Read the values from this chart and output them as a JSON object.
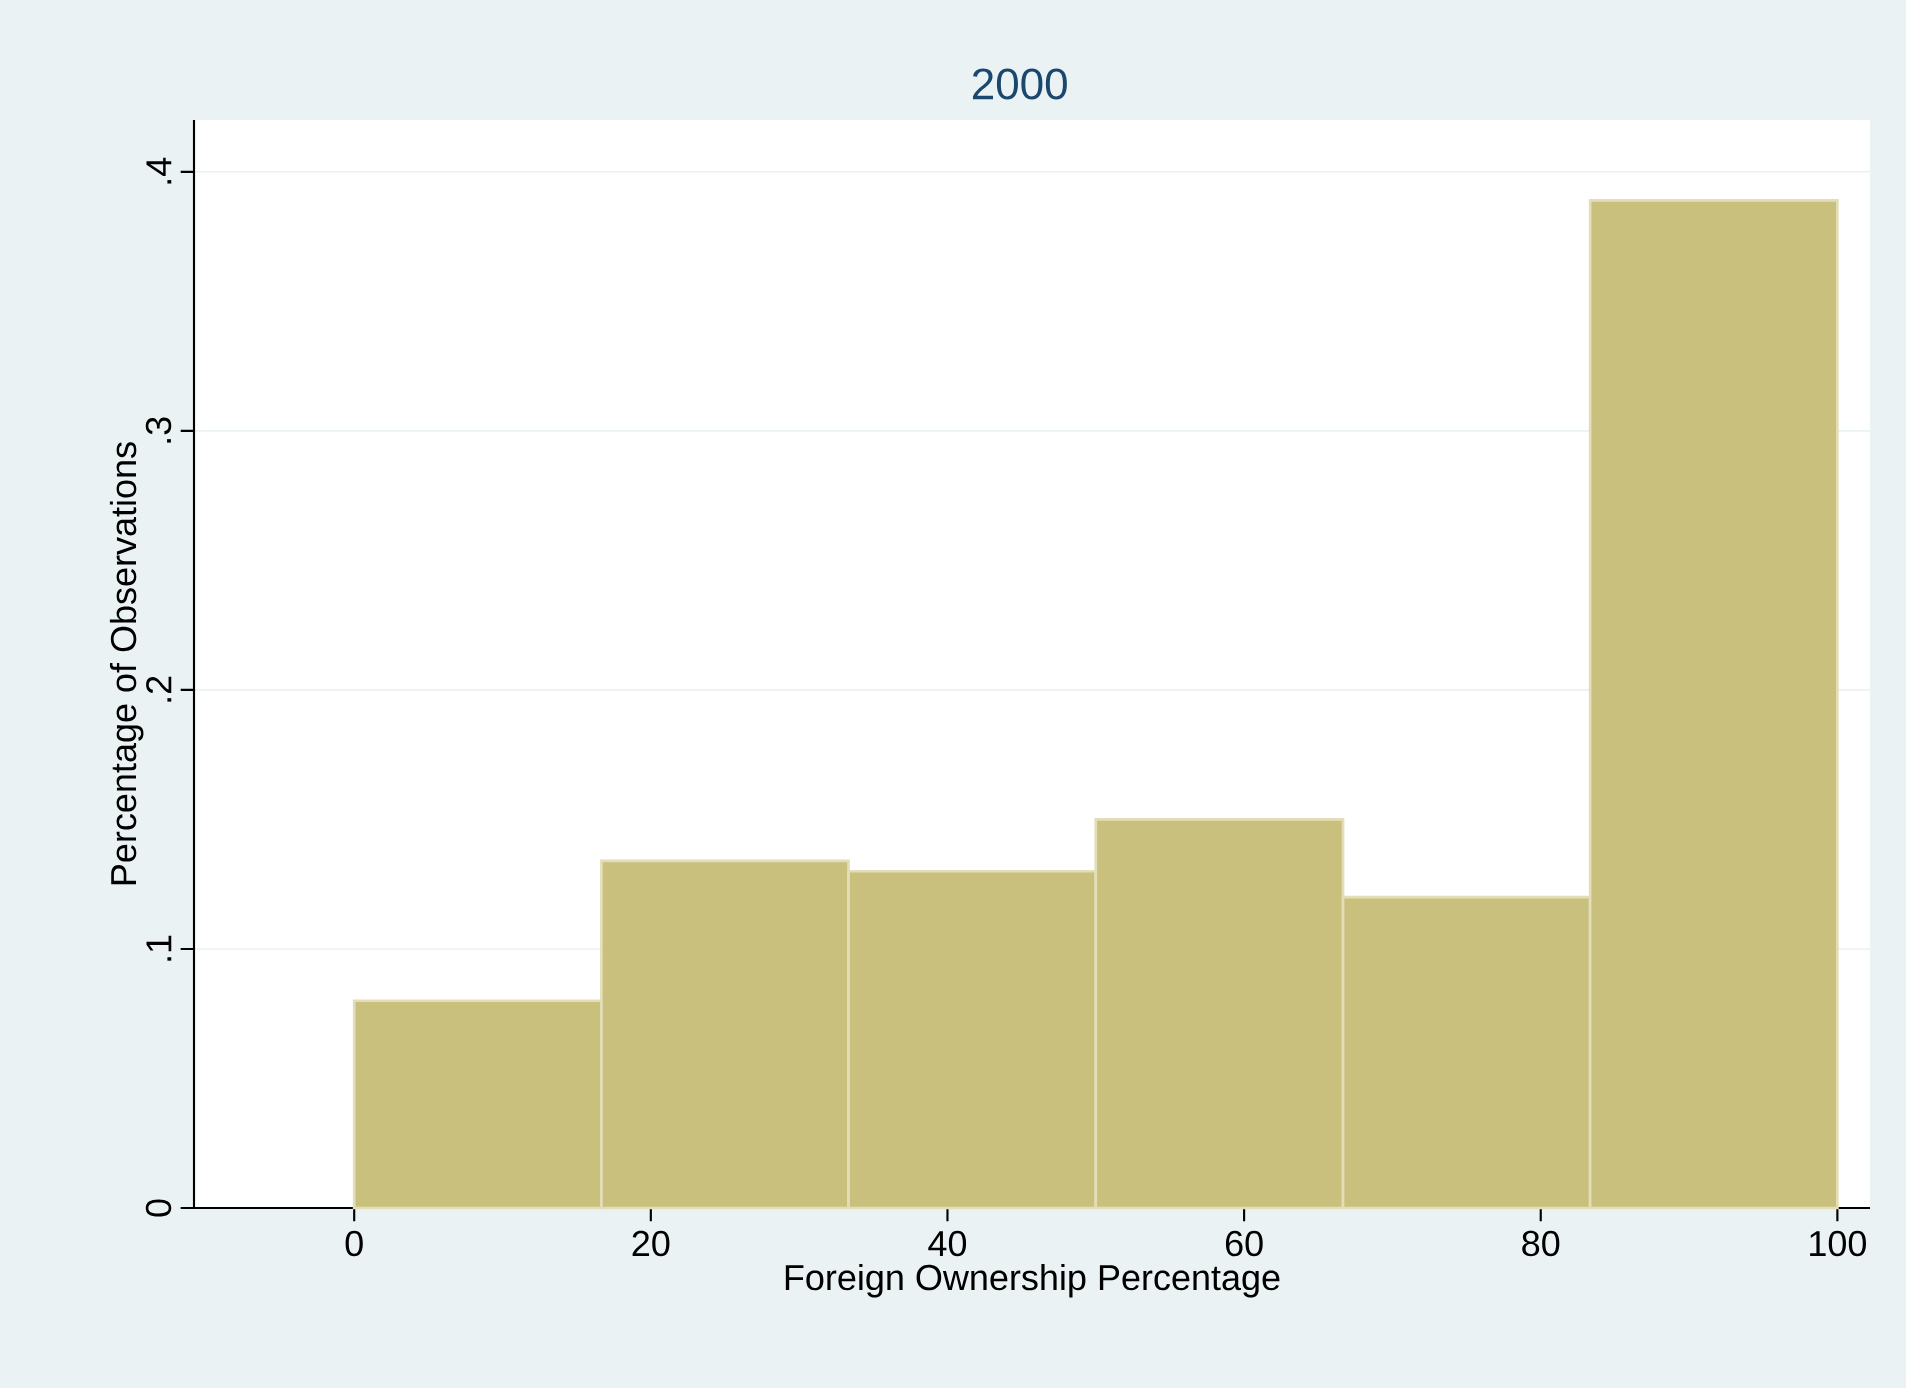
{
  "chart_data": {
    "type": "histogram",
    "title": "2000",
    "xlabel": "Foreign Ownership Percentage",
    "ylabel": "Percentage of Observations",
    "bins": [
      0,
      16.67,
      33.33,
      50,
      66.67,
      83.33,
      100
    ],
    "values": [
      0.08,
      0.134,
      0.13,
      0.15,
      0.12,
      0.389
    ],
    "color": "#c9c07e",
    "xlim": [
      -10.8,
      102.2
    ],
    "ylim": [
      0,
      0.42
    ],
    "xticks": [
      0,
      20,
      40,
      60,
      80,
      100
    ],
    "yticks": [
      {
        "value": 0,
        "label": "0"
      },
      {
        "value": 0.1,
        "label": ".1"
      },
      {
        "value": 0.2,
        "label": ".2"
      },
      {
        "value": 0.3,
        "label": ".3"
      },
      {
        "value": 0.4,
        "label": ".4"
      }
    ],
    "grid": "y"
  }
}
